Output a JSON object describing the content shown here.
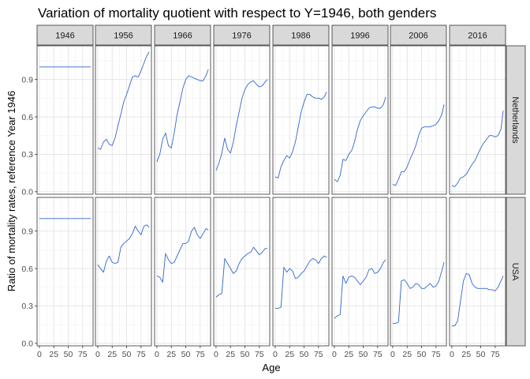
{
  "chart_data": {
    "type": "line",
    "title": "Variation of mortality quotient with respect to Y=1946, both genders",
    "xlabel": "Age",
    "ylabel": "Ratio of mortality rates, reference Year 1946",
    "column_facets": [
      "1946",
      "1956",
      "1966",
      "1976",
      "1986",
      "1996",
      "2006",
      "2016"
    ],
    "row_facets": [
      "Netherlands",
      "USA"
    ],
    "x_ticks": [
      "0",
      "25",
      "50",
      "75"
    ],
    "y_ticks": [
      "0.0",
      "0.3",
      "0.6",
      "0.9"
    ],
    "xlim": [
      -4,
      93
    ],
    "ylim": [
      -0.02,
      1.17
    ],
    "grid": true,
    "line_color": "#3366cc",
    "series": [
      {
        "row": "Netherlands",
        "column": "1946",
        "x": [
          0,
          89
        ],
        "values": [
          1.0,
          1.0
        ]
      },
      {
        "row": "Netherlands",
        "column": "1956",
        "x": [
          0,
          5,
          10,
          15,
          20,
          25,
          30,
          35,
          40,
          45,
          50,
          55,
          60,
          65,
          70,
          75,
          80,
          85,
          89
        ],
        "values": [
          0.35,
          0.34,
          0.4,
          0.42,
          0.38,
          0.37,
          0.43,
          0.53,
          0.62,
          0.72,
          0.78,
          0.85,
          0.92,
          0.93,
          0.92,
          0.97,
          1.03,
          1.09,
          1.12
        ]
      },
      {
        "row": "Netherlands",
        "column": "1966",
        "x": [
          0,
          5,
          10,
          15,
          20,
          25,
          30,
          35,
          40,
          45,
          50,
          55,
          60,
          65,
          70,
          75,
          80,
          85,
          89
        ],
        "values": [
          0.24,
          0.3,
          0.42,
          0.47,
          0.37,
          0.35,
          0.47,
          0.62,
          0.72,
          0.83,
          0.9,
          0.93,
          0.92,
          0.91,
          0.9,
          0.89,
          0.89,
          0.93,
          0.98
        ]
      },
      {
        "row": "Netherlands",
        "column": "1976",
        "x": [
          0,
          5,
          10,
          15,
          20,
          25,
          30,
          35,
          40,
          45,
          50,
          55,
          60,
          65,
          70,
          75,
          80,
          85,
          89
        ],
        "values": [
          0.17,
          0.23,
          0.31,
          0.43,
          0.34,
          0.31,
          0.4,
          0.53,
          0.64,
          0.75,
          0.82,
          0.86,
          0.88,
          0.89,
          0.86,
          0.84,
          0.85,
          0.88,
          0.9
        ]
      },
      {
        "row": "Netherlands",
        "column": "1986",
        "x": [
          0,
          5,
          10,
          15,
          20,
          25,
          30,
          35,
          40,
          45,
          50,
          55,
          60,
          65,
          70,
          75,
          80,
          85,
          89
        ],
        "values": [
          0.12,
          0.11,
          0.2,
          0.25,
          0.29,
          0.27,
          0.32,
          0.4,
          0.52,
          0.64,
          0.72,
          0.78,
          0.78,
          0.76,
          0.75,
          0.75,
          0.74,
          0.76,
          0.8
        ]
      },
      {
        "row": "Netherlands",
        "column": "1996",
        "x": [
          0,
          5,
          10,
          15,
          20,
          25,
          30,
          35,
          40,
          45,
          50,
          55,
          60,
          65,
          70,
          75,
          80,
          85,
          89
        ],
        "values": [
          0.1,
          0.08,
          0.13,
          0.26,
          0.25,
          0.3,
          0.33,
          0.4,
          0.5,
          0.57,
          0.61,
          0.64,
          0.67,
          0.68,
          0.68,
          0.67,
          0.67,
          0.7,
          0.76
        ]
      },
      {
        "row": "Netherlands",
        "column": "2006",
        "x": [
          0,
          5,
          10,
          15,
          20,
          25,
          30,
          35,
          40,
          45,
          50,
          55,
          60,
          65,
          70,
          75,
          80,
          85,
          89
        ],
        "values": [
          0.06,
          0.05,
          0.1,
          0.16,
          0.16,
          0.2,
          0.26,
          0.31,
          0.37,
          0.45,
          0.51,
          0.52,
          0.52,
          0.52,
          0.53,
          0.54,
          0.57,
          0.62,
          0.7
        ]
      },
      {
        "row": "Netherlands",
        "column": "2016",
        "x": [
          0,
          5,
          10,
          15,
          20,
          25,
          30,
          35,
          40,
          45,
          50,
          55,
          60,
          65,
          70,
          75,
          80,
          85,
          89
        ],
        "values": [
          0.05,
          0.04,
          0.07,
          0.11,
          0.12,
          0.14,
          0.18,
          0.22,
          0.25,
          0.3,
          0.35,
          0.39,
          0.42,
          0.45,
          0.45,
          0.44,
          0.45,
          0.5,
          0.65
        ]
      },
      {
        "row": "USA",
        "column": "1946",
        "x": [
          0,
          89
        ],
        "values": [
          1.0,
          1.0
        ]
      },
      {
        "row": "USA",
        "column": "1956",
        "x": [
          0,
          5,
          10,
          15,
          20,
          25,
          30,
          35,
          40,
          45,
          50,
          55,
          60,
          65,
          70,
          75,
          80,
          85,
          89
        ],
        "values": [
          0.63,
          0.6,
          0.57,
          0.66,
          0.7,
          0.65,
          0.64,
          0.65,
          0.77,
          0.8,
          0.82,
          0.84,
          0.88,
          0.94,
          0.9,
          0.87,
          0.94,
          0.95,
          0.93
        ]
      },
      {
        "row": "USA",
        "column": "1966",
        "x": [
          0,
          5,
          10,
          15,
          20,
          25,
          30,
          35,
          40,
          45,
          50,
          55,
          60,
          65,
          70,
          75,
          80,
          85,
          89
        ],
        "values": [
          0.54,
          0.53,
          0.49,
          0.72,
          0.67,
          0.64,
          0.65,
          0.7,
          0.75,
          0.8,
          0.8,
          0.82,
          0.9,
          0.93,
          0.87,
          0.84,
          0.88,
          0.92,
          0.91
        ]
      },
      {
        "row": "USA",
        "column": "1976",
        "x": [
          0,
          5,
          10,
          15,
          20,
          25,
          30,
          35,
          40,
          45,
          50,
          55,
          60,
          65,
          70,
          75,
          80,
          85,
          89
        ],
        "values": [
          0.37,
          0.39,
          0.4,
          0.68,
          0.64,
          0.6,
          0.56,
          0.58,
          0.64,
          0.68,
          0.7,
          0.72,
          0.73,
          0.77,
          0.74,
          0.71,
          0.73,
          0.76,
          0.76
        ]
      },
      {
        "row": "USA",
        "column": "1986",
        "x": [
          0,
          5,
          10,
          15,
          20,
          25,
          30,
          35,
          40,
          45,
          50,
          55,
          60,
          65,
          70,
          75,
          80,
          85,
          89
        ],
        "values": [
          0.28,
          0.28,
          0.29,
          0.61,
          0.57,
          0.6,
          0.58,
          0.52,
          0.53,
          0.56,
          0.58,
          0.62,
          0.66,
          0.68,
          0.67,
          0.64,
          0.68,
          0.7,
          0.69
        ]
      },
      {
        "row": "USA",
        "column": "1996",
        "x": [
          0,
          5,
          10,
          15,
          20,
          25,
          30,
          35,
          40,
          45,
          50,
          55,
          60,
          65,
          70,
          75,
          80,
          85,
          89
        ],
        "values": [
          0.2,
          0.22,
          0.23,
          0.54,
          0.48,
          0.53,
          0.54,
          0.53,
          0.5,
          0.47,
          0.5,
          0.53,
          0.59,
          0.6,
          0.56,
          0.57,
          0.6,
          0.65,
          0.67
        ]
      },
      {
        "row": "USA",
        "column": "2006",
        "x": [
          0,
          5,
          10,
          15,
          20,
          25,
          30,
          35,
          40,
          45,
          50,
          55,
          60,
          65,
          70,
          75,
          80,
          85,
          89
        ],
        "values": [
          0.16,
          0.16,
          0.17,
          0.5,
          0.51,
          0.48,
          0.44,
          0.45,
          0.48,
          0.47,
          0.44,
          0.44,
          0.46,
          0.48,
          0.45,
          0.46,
          0.5,
          0.58,
          0.65
        ]
      },
      {
        "row": "USA",
        "column": "2016",
        "x": [
          0,
          5,
          10,
          15,
          20,
          25,
          30,
          35,
          40,
          45,
          50,
          55,
          60,
          65,
          70,
          75,
          80,
          85,
          89
        ],
        "values": [
          0.14,
          0.14,
          0.18,
          0.34,
          0.5,
          0.56,
          0.55,
          0.48,
          0.45,
          0.44,
          0.44,
          0.44,
          0.44,
          0.43,
          0.43,
          0.42,
          0.45,
          0.5,
          0.54
        ]
      }
    ]
  }
}
